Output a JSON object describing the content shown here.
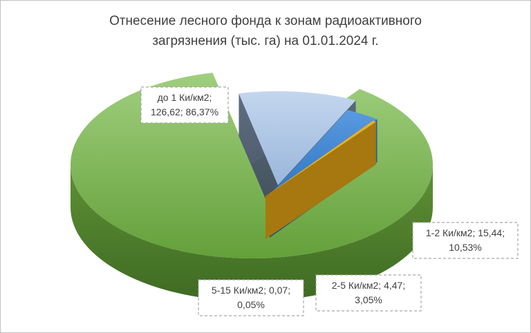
{
  "chart_data": {
    "type": "pie",
    "title_lines": [
      "Отнесение лесного фонда к зонам радиоактивного",
      "загрязнения  (тыс. га) на 01.01.2024 г."
    ],
    "slices": [
      {
        "name": "до 1 Ки/км2",
        "value": 126.62,
        "percent": 86.37,
        "color": "#71a845",
        "label_lines": [
          "до 1 Ки/км2;",
          "126,62; 86,37%"
        ]
      },
      {
        "name": "1-2 Ки/км2",
        "value": 15.44,
        "percent": 10.53,
        "color": "#a9c3e3",
        "label_lines": [
          "1-2 Ки/км2; 15,44;",
          "10,53%"
        ]
      },
      {
        "name": "2-5 Ки/км2",
        "value": 4.47,
        "percent": 3.05,
        "color": "#3f86cf",
        "label_lines": [
          "2-5 Ки/км2; 4,47;",
          "3,05%"
        ]
      },
      {
        "name": "5-15 Ки/км2",
        "value": 0.07,
        "percent": 0.05,
        "color": "#e0a81e",
        "label_lines": [
          "5-15 Ки/км2; 0,07;",
          "0,05%"
        ]
      }
    ],
    "style": "3d-exploded-pie",
    "legend": "none"
  }
}
